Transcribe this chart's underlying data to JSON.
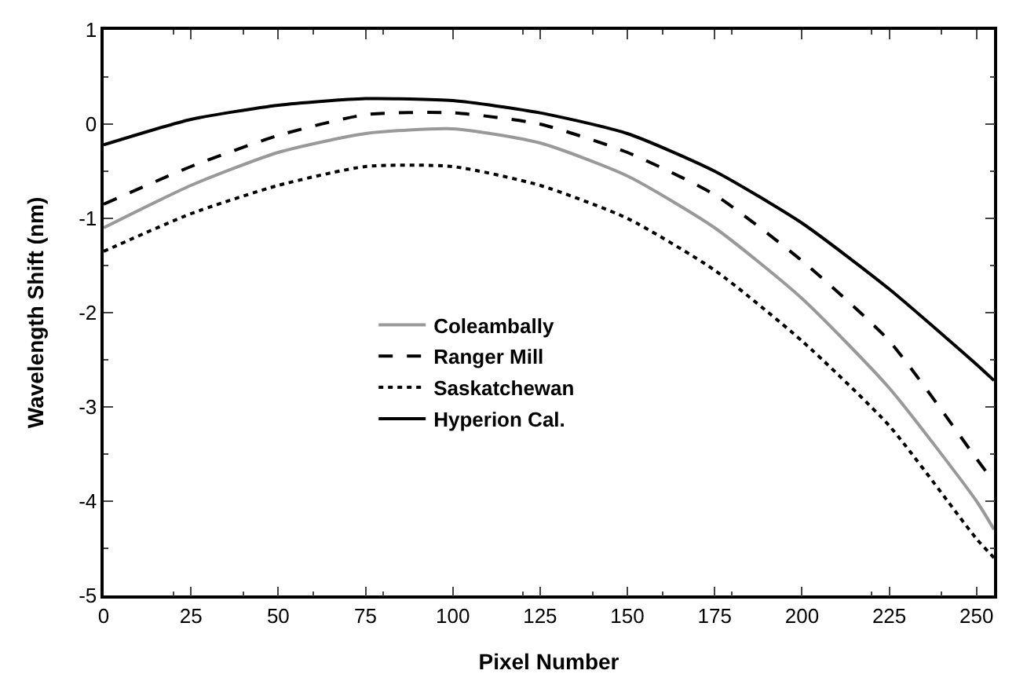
{
  "chart_data": {
    "type": "line",
    "xlabel": "Pixel Number",
    "ylabel": "Wavelength Shift (nm)",
    "x": [
      0,
      25,
      50,
      75,
      100,
      125,
      150,
      175,
      200,
      225,
      250,
      255
    ],
    "series": [
      {
        "name": "Coleambally",
        "color": "#999999",
        "line_style": "solid",
        "values": [
          -1.1,
          -0.65,
          -0.3,
          -0.1,
          -0.05,
          -0.2,
          -0.55,
          -1.1,
          -1.85,
          -2.8,
          -4.0,
          -4.3
        ]
      },
      {
        "name": "Ranger Mill",
        "color": "#000000",
        "line_style": "dashed",
        "values": [
          -0.85,
          -0.45,
          -0.12,
          0.1,
          0.12,
          0.0,
          -0.3,
          -0.75,
          -1.45,
          -2.3,
          -3.55,
          -3.8
        ]
      },
      {
        "name": "Saskatchewan",
        "color": "#000000",
        "line_style": "dotted",
        "values": [
          -1.35,
          -0.95,
          -0.65,
          -0.45,
          -0.45,
          -0.65,
          -1.0,
          -1.55,
          -2.3,
          -3.2,
          -4.4,
          -4.6
        ]
      },
      {
        "name": "Hyperion Cal.",
        "color": "#000000",
        "line_style": "solid",
        "values": [
          -0.22,
          0.05,
          0.2,
          0.27,
          0.25,
          0.12,
          -0.1,
          -0.5,
          -1.05,
          -1.75,
          -2.55,
          -2.72
        ]
      }
    ],
    "xlim": [
      0,
      255
    ],
    "xticks": [
      0,
      25,
      50,
      75,
      100,
      125,
      150,
      175,
      200,
      225,
      250
    ],
    "ylim": [
      -5,
      1
    ],
    "yticks": [
      -5,
      -4,
      -3,
      -2,
      -1,
      0,
      1
    ],
    "grid": false,
    "legend": "center",
    "marker": "none"
  }
}
